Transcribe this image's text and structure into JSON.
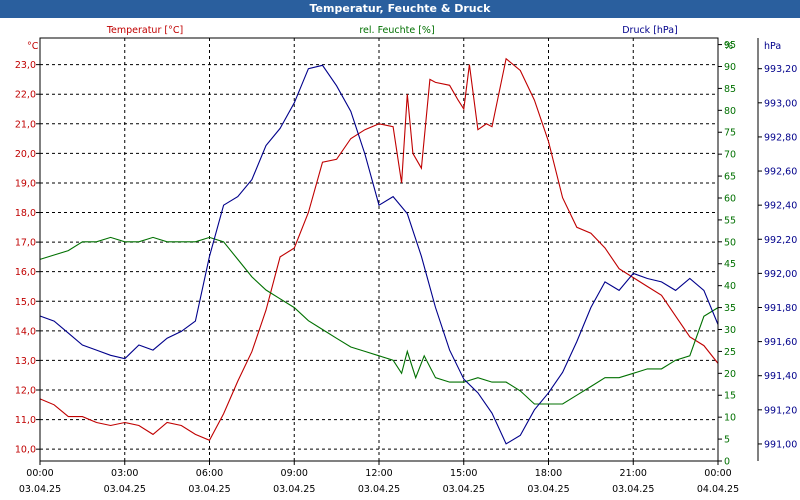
{
  "window": {
    "title": "Temperatur, Feuchte & Druck"
  },
  "chart_data": {
    "type": "line",
    "title": "Temperatur, Feuchte & Druck",
    "grid": true,
    "x_ticks": [
      {
        "time": "00:00",
        "date": "03.04.25"
      },
      {
        "time": "03:00",
        "date": "03.04.25"
      },
      {
        "time": "06:00",
        "date": "03.04.25"
      },
      {
        "time": "09:00",
        "date": "03.04.25"
      },
      {
        "time": "12:00",
        "date": "03.04.25"
      },
      {
        "time": "15:00",
        "date": "03.04.25"
      },
      {
        "time": "18:00",
        "date": "03.04.25"
      },
      {
        "time": "21:00",
        "date": "03.04.25"
      },
      {
        "time": "00:00",
        "date": "04.04.25"
      }
    ],
    "xlim": [
      0,
      24
    ],
    "axes": {
      "left": {
        "unit": "°C",
        "min": 9.6,
        "max": 23.9,
        "ticks": [
          "10,0",
          "11,0",
          "12,0",
          "13,0",
          "14,0",
          "15,0",
          "16,0",
          "17,0",
          "18,0",
          "19,0",
          "20,0",
          "21,0",
          "22,0",
          "23,0"
        ],
        "tick_values": [
          10,
          11,
          12,
          13,
          14,
          15,
          16,
          17,
          18,
          19,
          20,
          21,
          22,
          23
        ],
        "color": "#c00000"
      },
      "right1": {
        "unit": "%",
        "min": 0,
        "max": 96.5,
        "ticks": [
          "0",
          "5",
          "10",
          "15",
          "20",
          "25",
          "30",
          "35",
          "40",
          "45",
          "50",
          "55",
          "60",
          "65",
          "70",
          "75",
          "80",
          "85",
          "90",
          "95"
        ],
        "tick_values": [
          0,
          5,
          10,
          15,
          20,
          25,
          30,
          35,
          40,
          45,
          50,
          55,
          60,
          65,
          70,
          75,
          80,
          85,
          90,
          95
        ],
        "color": "#007000"
      },
      "right2": {
        "unit": "hPa",
        "min": 990.9,
        "max": 993.38,
        "ticks": [
          "991,00",
          "991,20",
          "991,40",
          "991,60",
          "991,80",
          "992,00",
          "992,20",
          "992,40",
          "992,60",
          "992,80",
          "993,00",
          "993,20"
        ],
        "tick_values": [
          991.0,
          991.2,
          991.4,
          991.6,
          991.8,
          992.0,
          992.2,
          992.4,
          992.6,
          992.8,
          993.0,
          993.2
        ],
        "color": "#00008b"
      }
    },
    "series": [
      {
        "name": "Temperatur [°C]",
        "axis": "left",
        "color": "#c00000",
        "x": [
          0,
          0.5,
          1,
          1.5,
          2,
          2.5,
          3,
          3.5,
          4,
          4.5,
          5,
          5.5,
          6,
          6.5,
          7,
          7.5,
          8,
          8.5,
          9,
          9.5,
          10,
          10.5,
          11,
          11.5,
          12,
          12.5,
          12.8,
          13,
          13.2,
          13.5,
          13.8,
          14,
          14.5,
          14.8,
          15,
          15.2,
          15.5,
          15.8,
          16,
          16.5,
          17,
          17.5,
          18,
          18.5,
          19,
          19.5,
          20,
          20.5,
          21,
          21.5,
          22,
          22.5,
          23,
          23.5,
          24
        ],
        "values": [
          11.7,
          11.5,
          11.1,
          11.1,
          10.9,
          10.8,
          10.9,
          10.8,
          10.5,
          10.9,
          10.8,
          10.5,
          10.3,
          11.2,
          12.3,
          13.3,
          14.7,
          16.5,
          16.8,
          18.0,
          19.7,
          19.8,
          20.5,
          20.8,
          21.0,
          20.9,
          19.0,
          22.0,
          20.0,
          19.5,
          22.5,
          22.4,
          22.3,
          21.8,
          21.5,
          23.0,
          20.8,
          21.0,
          20.9,
          23.2,
          22.8,
          21.8,
          20.4,
          18.5,
          17.5,
          17.3,
          16.8,
          16.1,
          15.8,
          15.5,
          15.2,
          14.5,
          13.8,
          13.5,
          12.9
        ]
      },
      {
        "name": "rel. Feuchte [%]",
        "axis": "right1",
        "color": "#007000",
        "x": [
          0,
          0.5,
          1,
          1.5,
          2,
          2.5,
          3,
          3.5,
          4,
          4.5,
          5,
          5.5,
          6,
          6.5,
          7,
          7.5,
          8,
          8.5,
          9,
          9.5,
          10,
          10.5,
          11,
          11.5,
          12,
          12.5,
          12.8,
          13,
          13.3,
          13.6,
          14,
          14.5,
          15,
          15.5,
          16,
          16.5,
          17,
          17.5,
          18,
          18.5,
          19,
          19.5,
          20,
          20.5,
          21,
          21.5,
          22,
          22.5,
          23,
          23.5,
          24
        ],
        "values": [
          46,
          47,
          48,
          50,
          50,
          51,
          50,
          50,
          51,
          50,
          50,
          50,
          51,
          50,
          46,
          42,
          39,
          37,
          35,
          32,
          30,
          28,
          26,
          25,
          24,
          23,
          20,
          25,
          19,
          24,
          19,
          18,
          18,
          19,
          18,
          18,
          16,
          13,
          13,
          13,
          15,
          17,
          19,
          19,
          20,
          21,
          21,
          23,
          24,
          33,
          35
        ]
      },
      {
        "name": "Druck [hPa]",
        "axis": "right2",
        "color": "#00008b",
        "x": [
          0,
          0.5,
          1,
          1.5,
          2,
          2.5,
          3,
          3.5,
          4,
          4.5,
          5,
          5.5,
          6,
          6.5,
          7,
          7.5,
          8,
          8.5,
          9,
          9.5,
          10,
          10.5,
          11,
          11.5,
          12,
          12.5,
          13,
          13.5,
          14,
          14.5,
          15,
          15.5,
          16,
          16.5,
          17,
          17.5,
          18,
          18.5,
          19,
          19.5,
          20,
          20.5,
          21,
          21.5,
          22,
          22.5,
          23,
          23.5,
          24
        ],
        "values": [
          991.75,
          991.72,
          991.65,
          991.58,
          991.55,
          991.52,
          991.5,
          991.58,
          991.55,
          991.62,
          991.66,
          991.72,
          992.1,
          992.4,
          992.45,
          992.55,
          992.75,
          992.85,
          993.0,
          993.2,
          993.22,
          993.1,
          992.95,
          992.7,
          992.4,
          992.45,
          992.35,
          992.1,
          991.8,
          991.55,
          991.38,
          991.3,
          991.18,
          991.0,
          991.05,
          991.2,
          991.3,
          991.42,
          991.6,
          991.8,
          991.95,
          991.9,
          992.0,
          991.97,
          991.95,
          991.9,
          991.97,
          991.9,
          991.7
        ]
      }
    ]
  }
}
